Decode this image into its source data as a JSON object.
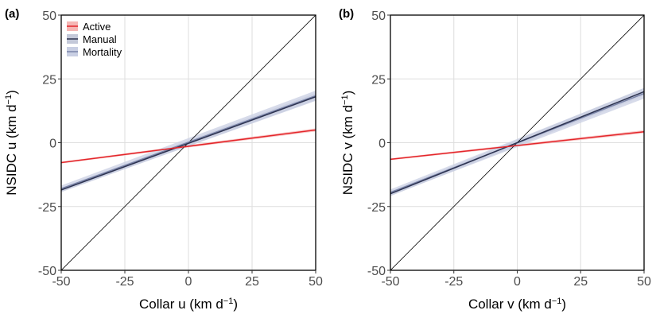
{
  "chart_data": [
    {
      "type": "line",
      "panel_label": "(a)",
      "xlabel_main": "Collar u (km d",
      "ylabel_main": "NSIDC u (km d",
      "label_superscript": "−1",
      "label_close": ")",
      "xlim": [
        -50,
        50
      ],
      "ylim": [
        -50,
        50
      ],
      "x_ticks": [
        "-50",
        "-25",
        "0",
        "25",
        "50"
      ],
      "y_ticks": [
        "-50",
        "-25",
        "0",
        "25",
        "50"
      ],
      "grid": true,
      "legend": "top-left",
      "reference_line": {
        "x": [
          -50,
          50
        ],
        "y": [
          -50,
          50
        ],
        "color": "#000000"
      },
      "series": [
        {
          "name": "Active",
          "x": [
            -50,
            50
          ],
          "y": [
            -7.8,
            5.0
          ],
          "band": 0.6,
          "color": "#e4262b",
          "band_color": "#f5b7b5"
        },
        {
          "name": "Manual",
          "x": [
            -50,
            50
          ],
          "y": [
            -18.5,
            18.0
          ],
          "band": 1.4,
          "color": "#2d3350",
          "band_color": "#c4c9d9"
        },
        {
          "name": "Mortality",
          "x": [
            -50,
            50
          ],
          "y": [
            -18.0,
            18.4
          ],
          "band": 2.0,
          "color": "#7a84a8",
          "band_color": "#c9cfe3"
        }
      ]
    },
    {
      "type": "line",
      "panel_label": "(b)",
      "xlabel_main": "Collar v (km d",
      "ylabel_main": "NSIDC v (km d",
      "label_superscript": "−1",
      "label_close": ")",
      "xlim": [
        -50,
        50
      ],
      "ylim": [
        -50,
        50
      ],
      "x_ticks": [
        "-50",
        "-25",
        "0",
        "25",
        "50"
      ],
      "y_ticks": [
        "-50",
        "-25",
        "0",
        "25",
        "50"
      ],
      "grid": true,
      "legend": "none",
      "reference_line": {
        "x": [
          -50,
          50
        ],
        "y": [
          -50,
          50
        ],
        "color": "#000000"
      },
      "series": [
        {
          "name": "Active",
          "x": [
            -50,
            50
          ],
          "y": [
            -6.5,
            4.3
          ],
          "band": 0.6,
          "color": "#e4262b",
          "band_color": "#f5b7b5"
        },
        {
          "name": "Manual",
          "x": [
            -50,
            50
          ],
          "y": [
            -20.0,
            20.0
          ],
          "band": 1.5,
          "color": "#2d3350",
          "band_color": "#c4c9d9"
        },
        {
          "name": "Mortality",
          "x": [
            -50,
            50
          ],
          "y": [
            -19.5,
            19.3
          ],
          "band": 2.0,
          "color": "#7a84a8",
          "band_color": "#c9cfe3"
        }
      ]
    }
  ]
}
